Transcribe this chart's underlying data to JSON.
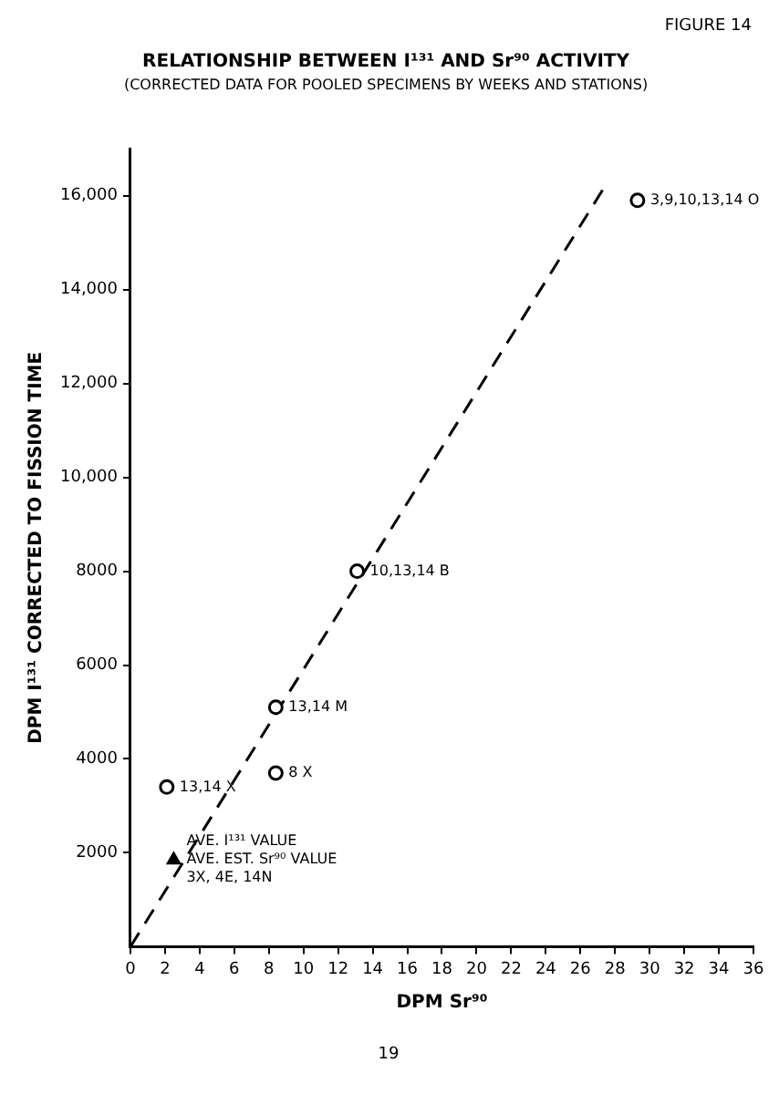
{
  "chart_data": {
    "type": "scatter",
    "title": "RELATIONSHIP BETWEEN I¹³¹ AND Sr⁹⁰ ACTIVITY",
    "subtitle": "(CORRECTED DATA FOR POOLED SPECIMENS BY WEEKS AND STATIONS)",
    "xlabel": "DPM Sr⁹⁰",
    "ylabel": "DPM I¹³¹ CORRECTED TO FISSION TIME",
    "xlim": [
      0,
      36
    ],
    "xticks": [
      0,
      2,
      4,
      6,
      8,
      10,
      12,
      14,
      16,
      18,
      20,
      22,
      24,
      26,
      28,
      30,
      32,
      34,
      36
    ],
    "ylim": [
      0,
      17000
    ],
    "yticks": [
      2000,
      4000,
      6000,
      8000,
      {
        "value": 10000,
        "label": "10,000"
      },
      {
        "value": 12000,
        "label": "12,000"
      },
      {
        "value": 14000,
        "label": "14,000"
      },
      {
        "value": 16000,
        "label": "16,000"
      }
    ],
    "grid": false,
    "legend": false,
    "series": [
      {
        "marker": "circle",
        "color": "#000000",
        "x": [
          2.1,
          8.4,
          8.4,
          13.1,
          29.3
        ],
        "values": [
          3400,
          3700,
          5100,
          8000,
          15900
        ]
      },
      {
        "marker": "triangle",
        "color": "#000000",
        "x": [
          2.5
        ],
        "values": [
          1850
        ]
      },
      {
        "type": "line",
        "marker": "none",
        "line_style": "dashed",
        "color": "#000000",
        "x": [
          0,
          27.5
        ],
        "values": [
          0,
          16250
        ]
      }
    ],
    "annotations": [
      "FIGURE 14",
      "19",
      {
        "text": "13,14 X",
        "x": 2.1,
        "y": 3400
      },
      {
        "text": "8 X",
        "x": 8.4,
        "y": 3700
      },
      {
        "text": "13,14 M",
        "x": 8.4,
        "y": 5100
      },
      {
        "text": "10,13,14 B",
        "x": 13.1,
        "y": 8000
      },
      {
        "text": "3,9,10,13,14 O",
        "x": 29.3,
        "y": 15900
      },
      {
        "text": "AVE. I¹³¹ VALUE\nAVE. EST. Sr⁹⁰ VALUE\n3X, 4E, 14N",
        "x": 2.5,
        "y": 1850
      }
    ]
  }
}
